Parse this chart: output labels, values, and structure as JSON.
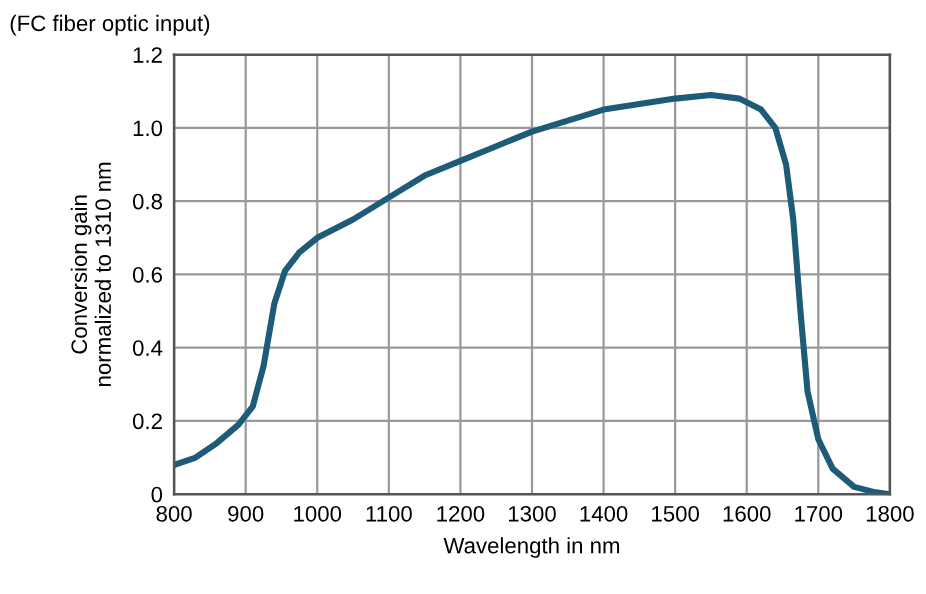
{
  "chart_data": {
    "type": "line",
    "title": "(FC fiber optic input)",
    "xlabel": "Wavelength in nm",
    "ylabel": "Conversion gain\nnormalized to 1310 nm",
    "x": [
      800,
      830,
      860,
      890,
      910,
      925,
      940,
      955,
      975,
      1000,
      1050,
      1100,
      1150,
      1200,
      1250,
      1300,
      1350,
      1400,
      1450,
      1500,
      1550,
      1590,
      1620,
      1640,
      1655,
      1665,
      1675,
      1685,
      1700,
      1720,
      1750,
      1780,
      1800
    ],
    "series": [
      {
        "color": "#1d5b78",
        "values": [
          0.08,
          0.1,
          0.14,
          0.19,
          0.24,
          0.35,
          0.52,
          0.61,
          0.66,
          0.7,
          0.75,
          0.81,
          0.87,
          0.91,
          0.95,
          0.99,
          1.02,
          1.05,
          1.065,
          1.08,
          1.09,
          1.08,
          1.05,
          1.0,
          0.9,
          0.75,
          0.5,
          0.28,
          0.15,
          0.07,
          0.02,
          0.005,
          0.0
        ]
      }
    ],
    "xlim": [
      800,
      1800
    ],
    "ylim": [
      0,
      1.2
    ],
    "xticks": [
      800,
      900,
      1000,
      1100,
      1200,
      1300,
      1400,
      1500,
      1600,
      1700,
      1800
    ],
    "yticks": [
      0,
      {
        "value": 0.2,
        "label": "0.2"
      },
      {
        "value": 0.4,
        "label": "0.4"
      },
      {
        "value": 0.6,
        "label": "0.6"
      },
      {
        "value": 0.8,
        "label": "0.8"
      },
      {
        "value": 1.0,
        "label": "1.0"
      },
      {
        "value": 1.2,
        "label": "1.2"
      }
    ],
    "grid": true,
    "line_style": "solid"
  }
}
